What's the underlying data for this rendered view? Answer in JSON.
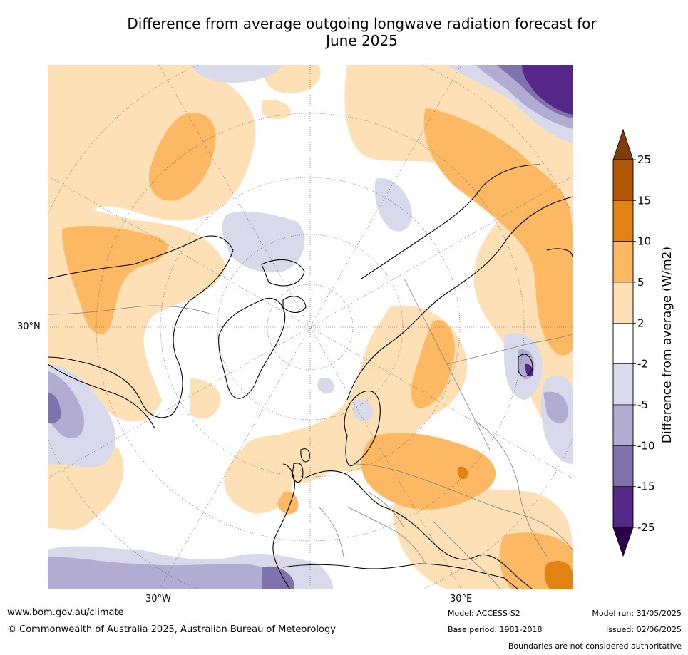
{
  "title_line1": "Difference from average outgoing longwave radiation forecast for",
  "title_line2": "June 2025",
  "graticule_labels": {
    "lon_left": "30°W",
    "lon_right": "30°E",
    "lat": "30°N"
  },
  "colorbar": {
    "label": "Difference from average (W/m2)",
    "ticks": [
      "25",
      "15",
      "10",
      "5",
      "2",
      "-2",
      "-5",
      "-10",
      "-15",
      "-25"
    ],
    "colors": {
      "above_25": "#7f3b08",
      "15_25": "#b35806",
      "10_15": "#e08214",
      "5_10": "#fdb863",
      "2_5": "#fee0b6",
      "neutral": "#ffffff",
      "m5_m2": "#d8daeb",
      "m10_m5": "#b2abd2",
      "m15_m10": "#8073ac",
      "m25_m15": "#542788",
      "below_m25": "#2d004b"
    }
  },
  "footer": {
    "url": "www.bom.gov.au/climate",
    "copyright": "© Commonwealth of Australia 2025, Australian Bureau of Meteorology",
    "model": "Model: ACCESS-S2",
    "base_period": "Base period: 1981-2018",
    "model_run": "Model run: 31/05/2025",
    "issued": "Issued: 02/06/2025",
    "disclaimer": "Boundaries are not considered authoritative"
  }
}
